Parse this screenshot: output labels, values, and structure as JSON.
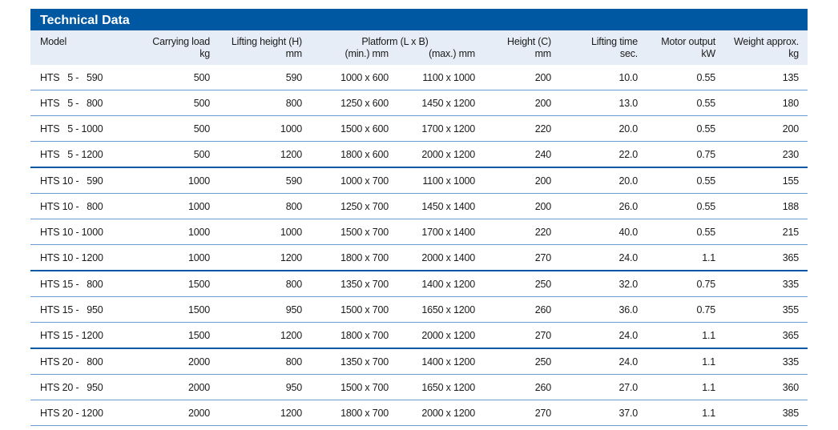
{
  "title": "Technical Data",
  "header": {
    "row1": [
      "Model",
      "Carrying load",
      "Lifting height (H)",
      "Platform (L x B)",
      "Height (C)",
      "Lifting time",
      "Motor output",
      "Weight approx."
    ],
    "row2": [
      "",
      "kg",
      "mm",
      "(min.) mm",
      "(max.) mm",
      "mm",
      "sec.",
      "kW",
      "kg"
    ]
  },
  "rows": [
    [
      "HTS   5 -   590",
      "500",
      "590",
      "1000 x 600",
      "1100 x 1000",
      "200",
      "10.0",
      "0.55",
      "135"
    ],
    [
      "HTS   5 -   800",
      "500",
      "800",
      "1250 x 600",
      "1450 x 1200",
      "200",
      "13.0",
      "0.55",
      "180"
    ],
    [
      "HTS   5 - 1000",
      "500",
      "1000",
      "1500 x 600",
      "1700 x 1200",
      "220",
      "20.0",
      "0.55",
      "200"
    ],
    [
      "HTS   5 - 1200",
      "500",
      "1200",
      "1800 x 600",
      "2000 x 1200",
      "240",
      "22.0",
      "0.75",
      "230"
    ],
    [
      "HTS 10 -   590",
      "1000",
      "590",
      "1000 x 700",
      "1100 x 1000",
      "200",
      "20.0",
      "0.55",
      "155"
    ],
    [
      "HTS 10 -   800",
      "1000",
      "800",
      "1250 x 700",
      "1450 x 1400",
      "200",
      "26.0",
      "0.55",
      "188"
    ],
    [
      "HTS 10 - 1000",
      "1000",
      "1000",
      "1500 x 700",
      "1700 x 1400",
      "220",
      "40.0",
      "0.55",
      "215"
    ],
    [
      "HTS 10 - 1200",
      "1000",
      "1200",
      "1800 x 700",
      "2000 x 1400",
      "270",
      "24.0",
      "1.1",
      "365"
    ],
    [
      "HTS 15 -   800",
      "1500",
      "800",
      "1350 x 700",
      "1400 x 1200",
      "250",
      "32.0",
      "0.75",
      "335"
    ],
    [
      "HTS 15 -   950",
      "1500",
      "950",
      "1500 x 700",
      "1650 x 1200",
      "260",
      "36.0",
      "0.75",
      "355"
    ],
    [
      "HTS 15 - 1200",
      "1500",
      "1200",
      "1800 x 700",
      "2000 x 1200",
      "270",
      "24.0",
      "1.1",
      "365"
    ],
    [
      "HTS 20 -   800",
      "2000",
      "800",
      "1350 x 700",
      "1400 x 1200",
      "250",
      "24.0",
      "1.1",
      "335"
    ],
    [
      "HTS 20 -   950",
      "2000",
      "950",
      "1500 x 700",
      "1650 x 1200",
      "260",
      "27.0",
      "1.1",
      "360"
    ],
    [
      "HTS 20 - 1200",
      "2000",
      "1200",
      "1800 x 700",
      "2000 x 1200",
      "270",
      "37.0",
      "1.1",
      "385"
    ]
  ],
  "group_ends": [
    3,
    7,
    10
  ],
  "colors": {
    "accent": "#0058a3",
    "header_bg": "#e6edf6",
    "row_line": "#6b9bd1"
  }
}
